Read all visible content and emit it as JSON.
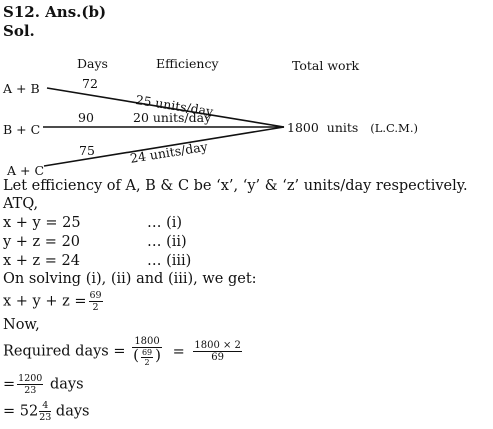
{
  "header": {
    "title": "S12. Ans.(b)",
    "sol": "Sol."
  },
  "diagram": {
    "col_days": "Days",
    "col_efficiency": "Efficiency",
    "col_total": "Total   work",
    "rows": [
      {
        "label": "A + B",
        "days": "72",
        "efficiency": "25  units/day"
      },
      {
        "label": "B + C",
        "days": "90",
        "efficiency": "20 units/day"
      },
      {
        "label": "A + C",
        "days": "75",
        "efficiency": "24 units/day"
      }
    ],
    "total_value": "1800",
    "total_units": "units",
    "total_note": "(L.C.M.)"
  },
  "body": {
    "line1": "Let efficiency of A, B & C be ‘x’, ‘y’ & ‘z’ units/day respectively.",
    "line2": "ATQ,",
    "eq1": "x + y = 25",
    "eq1_tag": "… (i)",
    "eq2": "y + z = 20",
    "eq2_tag": "… (ii)",
    "eq3": "x + z = 24",
    "eq3_tag": "… (iii)",
    "solving": "On solving (i), (ii) and (iii), we get:",
    "sum_lhs": "x + y + z =",
    "sum_num": "69",
    "sum_den": "2",
    "now": "Now,",
    "req_label": "Required days =",
    "req_num": "1800",
    "req_inner_num": "69",
    "req_inner_den": "2",
    "eq_sign": "=",
    "req2_num": "1800 × 2",
    "req2_den": "69",
    "res1_prefix": "=",
    "res1_num": "1200",
    "res1_den": "23",
    "res1_suffix": "days",
    "res2_prefix": "= 52",
    "res2_num": "4",
    "res2_den": "23",
    "res2_suffix": "days"
  }
}
